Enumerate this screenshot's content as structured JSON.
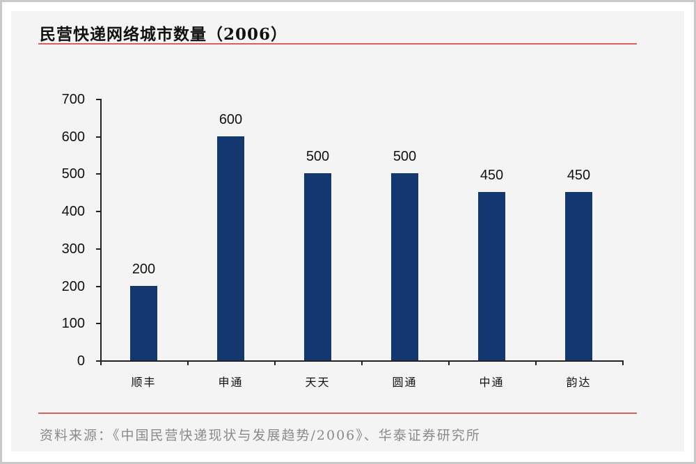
{
  "title": "民营快递网络城市数量（2006）",
  "source": "资料来源：《中国民营快递现状与发展趋势/2006》、华泰证券研究所",
  "colors": {
    "bar": "#13386f",
    "rule": "#d9605a",
    "panel_bg": "#f4f4f5"
  },
  "chart_data": {
    "type": "bar",
    "title": "民营快递网络城市数量（2006）",
    "categories": [
      "顺丰",
      "申通",
      "天天",
      "圆通",
      "中通",
      "韵达"
    ],
    "values": [
      200,
      600,
      500,
      500,
      450,
      450
    ],
    "value_labels": [
      "200",
      "600",
      "500",
      "500",
      "450",
      "450"
    ],
    "xlabel": "",
    "ylabel": "",
    "ylim": [
      0,
      700
    ],
    "yticks": [
      "0",
      "100",
      "200",
      "300",
      "400",
      "500",
      "600",
      "700"
    ],
    "grid": false,
    "legend": "none",
    "data_labels": true
  }
}
